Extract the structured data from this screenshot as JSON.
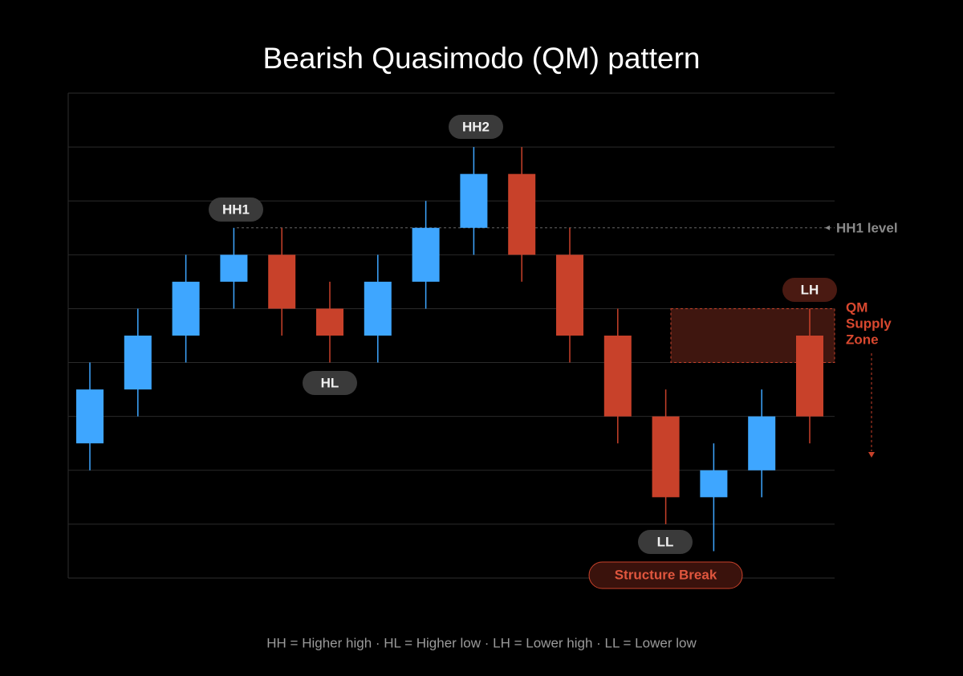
{
  "chart_data": {
    "type": "candlestick",
    "title": "Bearish Quasimodo (QM) pattern",
    "footer": "HH = Higher high · HL = Higher low · LH = Lower high · LL = Lower low",
    "ylim": [
      0,
      9
    ],
    "gridlines": [
      1,
      2,
      3,
      4,
      5,
      6,
      7,
      8
    ],
    "up_color": "#3ea6ff",
    "down_color": "#c8412a",
    "open": [
      2.5,
      3.5,
      4.5,
      5.5,
      6,
      5,
      4.5,
      5.5,
      6.5,
      7.5,
      6,
      4.5,
      3,
      1.5,
      2,
      4.5
    ],
    "close": [
      3.5,
      4.5,
      5.5,
      6,
      5,
      4.5,
      5.5,
      6.5,
      7.5,
      6,
      4.5,
      3,
      1.5,
      2,
      3,
      3
    ],
    "high": [
      4,
      5,
      6,
      6.5,
      6.5,
      5.5,
      6,
      7,
      8,
      8,
      6.5,
      5,
      3.5,
      2.5,
      3.5,
      5
    ],
    "low": [
      2,
      3,
      4,
      5,
      4.5,
      4,
      4,
      5,
      6,
      5.5,
      4,
      2.5,
      1,
      0.5,
      1.5,
      2.5
    ],
    "annotations": [
      "HH1",
      "HL",
      "HH2",
      "LL",
      "LH"
    ],
    "hh1_level": 6.5,
    "hh1_level_label": "HH1 level",
    "supply_zone": [
      4,
      5
    ],
    "supply_zone_label": "QM Supply Zone",
    "structure_break_label": "Structure Break"
  }
}
